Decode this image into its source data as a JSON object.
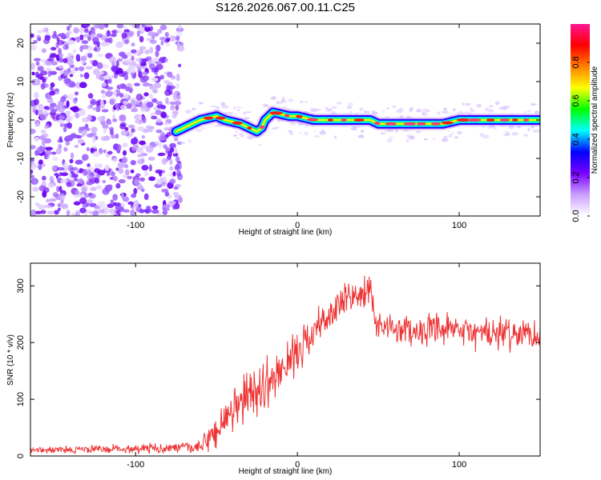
{
  "title": "S126.2026.067.00.11.C25",
  "chart_data": [
    {
      "type": "heatmap",
      "name": "spectrogram",
      "xlabel": "Height of straight line (km)",
      "ylabel": "Frequency (Hz)",
      "xlim": [
        -165,
        150
      ],
      "ylim": [
        -25,
        25
      ],
      "xticks": [
        -100,
        0,
        100
      ],
      "yticks": [
        -20,
        -10,
        0,
        10,
        20
      ],
      "ridge": {
        "x": [
          -75,
          -70,
          -65,
          -60,
          -55,
          -50,
          -45,
          -40,
          -35,
          -30,
          -25,
          -22,
          -20,
          -15,
          -10,
          -5,
          0,
          10,
          20,
          30,
          40,
          45,
          50,
          60,
          70,
          80,
          90,
          100,
          110,
          120,
          130,
          140,
          150
        ],
        "freq": [
          -3,
          -2,
          -1,
          0,
          0.5,
          1,
          0,
          -0.5,
          -1,
          -2,
          -3,
          -2,
          0,
          2,
          1.5,
          1,
          1,
          0,
          0,
          0,
          0,
          0,
          -1,
          -1,
          -1,
          -1,
          -1,
          0,
          0,
          0,
          0,
          0,
          0
        ]
      },
      "noise_region_x": [
        -165,
        -72
      ],
      "colorbar": {
        "label": "Normalized spectral amplitude",
        "range": [
          0,
          1
        ],
        "ticks": [
          0.0,
          0.2,
          0.4,
          0.6,
          0.8
        ],
        "colors": [
          "#ffffff",
          "#c9a0ff",
          "#7a00ff",
          "#0000ff",
          "#00ffff",
          "#00ff00",
          "#ffff00",
          "#ff8000",
          "#ff0000",
          "#ff1493"
        ]
      }
    },
    {
      "type": "line",
      "name": "snr",
      "xlabel": "Height of straight line (km)",
      "ylabel": "SNR (10 * v/v)",
      "xlim": [
        -165,
        150
      ],
      "ylim": [
        0,
        340
      ],
      "xticks": [
        -100,
        0,
        100
      ],
      "yticks": [
        0,
        100,
        200,
        300
      ],
      "color": "#ee3333",
      "trend": {
        "x": [
          -165,
          -60,
          -50,
          -40,
          -30,
          -20,
          -10,
          0,
          10,
          20,
          30,
          40,
          45,
          48,
          60,
          80,
          100,
          120,
          140,
          150
        ],
        "y": [
          10,
          15,
          45,
          75,
          110,
          125,
          150,
          185,
          220,
          250,
          275,
          285,
          290,
          235,
          225,
          220,
          220,
          215,
          215,
          218
        ]
      },
      "noise_amplitude": {
        "x": [
          -165,
          -60,
          -50,
          -20,
          0,
          40,
          48,
          100,
          150
        ],
        "amp": [
          6,
          10,
          40,
          45,
          35,
          30,
          25,
          30,
          30
        ]
      }
    }
  ]
}
